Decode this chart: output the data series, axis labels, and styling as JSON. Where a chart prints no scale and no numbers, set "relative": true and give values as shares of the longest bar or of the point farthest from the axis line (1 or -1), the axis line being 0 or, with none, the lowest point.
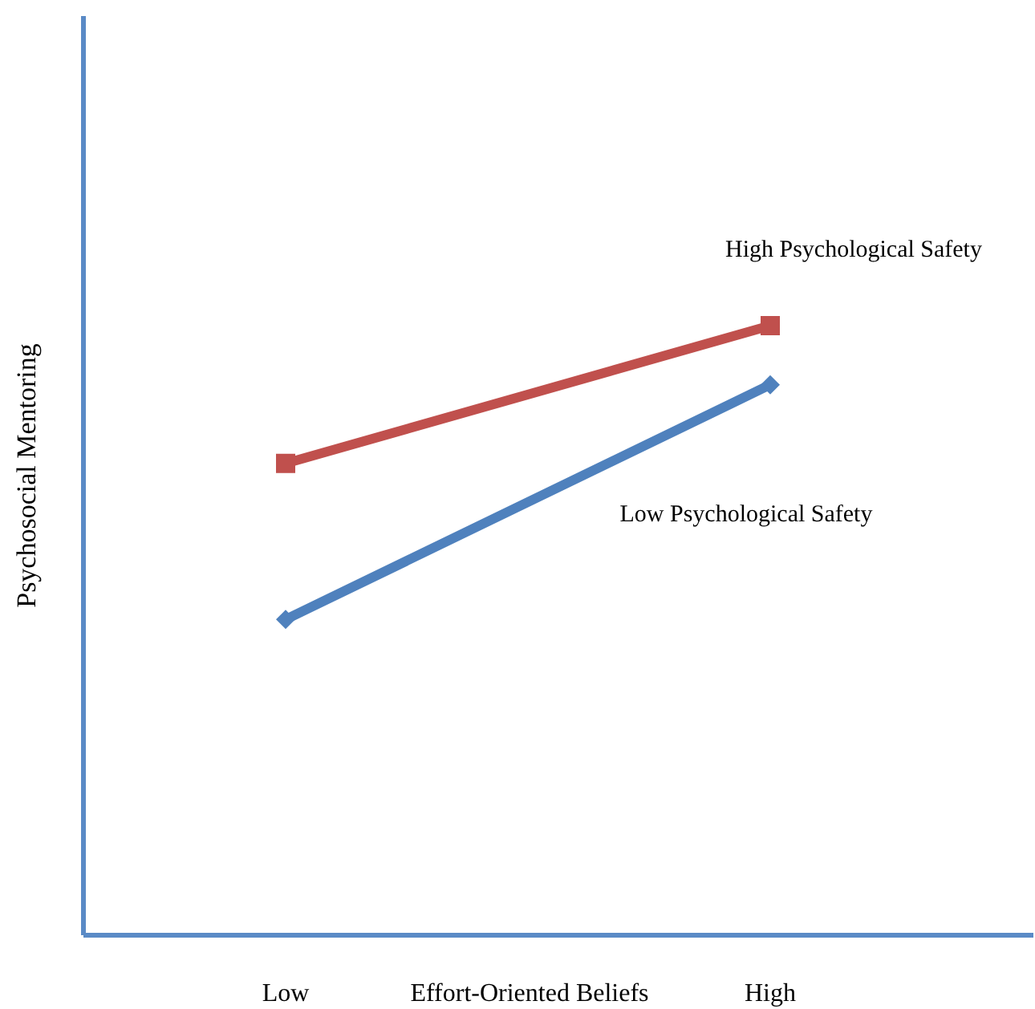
{
  "chart_data": {
    "type": "line",
    "relative": true,
    "xlabel": "Effort-Oriented Beliefs",
    "ylabel": "Psychosocial Mentoring",
    "categories": [
      "Low",
      "High"
    ],
    "series": [
      {
        "name": "High Psychological Safety",
        "color": "#c0504d",
        "values": [
          0.774,
          1
        ],
        "marker": "square"
      },
      {
        "name": "Low Psychological Safety",
        "color": "#4f81bd",
        "values": [
          0.518,
          0.903
        ],
        "marker": "diamond"
      }
    ]
  }
}
